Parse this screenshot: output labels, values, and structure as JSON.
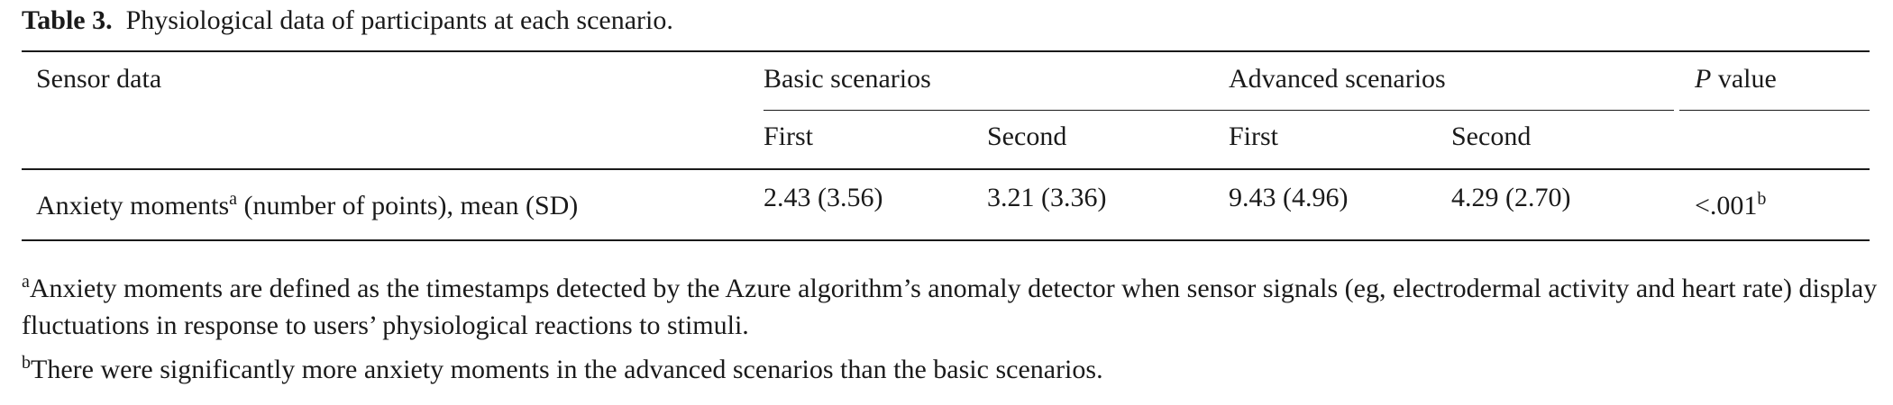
{
  "caption": {
    "label": "Table 3.",
    "text": "Physiological data of participants at each scenario."
  },
  "header": {
    "sensor_data": "Sensor data",
    "basic": "Basic scenarios",
    "advanced": "Advanced scenarios",
    "p_italic": "P",
    "p_rest": " value",
    "basic_first": "First",
    "basic_second": "Second",
    "advanced_first": "First",
    "advanced_second": "Second"
  },
  "row": {
    "label_pre": "Anxiety moments",
    "label_sup": "a",
    "label_post": " (number of points), mean (SD)",
    "basic_first": "2.43 (3.56)",
    "basic_second": "3.21 (3.36)",
    "advanced_first": "9.43 (4.96)",
    "advanced_second": "4.29 (2.70)",
    "p_value": "<.001",
    "p_sup": "b"
  },
  "footnotes": {
    "a_mark": "a",
    "a_text": "Anxiety moments are defined as the timestamps detected by the Azure algorithm’s anomaly detector when sensor signals (eg, electrodermal activity and heart rate) display fluctuations in response to users’ physiological reactions to stimuli.",
    "b_mark": "b",
    "b_text": "There were significantly more anxiety moments in the advanced scenarios than the basic scenarios."
  }
}
